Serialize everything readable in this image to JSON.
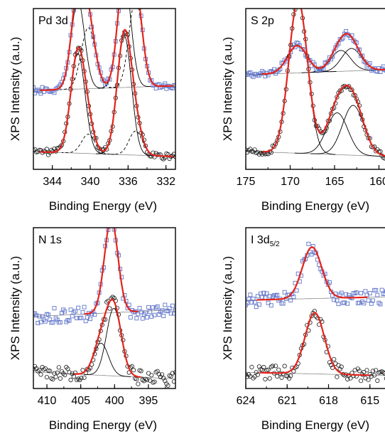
{
  "figure": {
    "y_axis_label": "XPS Intensity (a.u.)",
    "x_axis_label": "Binding Energy (eV)"
  },
  "colors": {
    "fit": "#e3241c",
    "top_markers": "#5f74c8",
    "bottom_markers": "#1a1a1a",
    "component": "#000000",
    "background_line": "#8a8a8a"
  },
  "chart_data": [
    {
      "type": "scatter",
      "panel": "Pd 3d",
      "title": "Pd 3d",
      "xlabel": "Binding Energy (eV)",
      "ylabel": "XPS Intensity (a.u.)",
      "xlim": [
        346,
        331
      ],
      "x_reversed": true,
      "xticks": [
        344,
        340,
        336,
        332
      ],
      "grid": false,
      "series": [
        {
          "curve": "top",
          "marker": "square",
          "peaks": [
            {
              "center": 341.3,
              "height": 0.55,
              "width": 0.7,
              "line": "solid"
            },
            {
              "center": 340.2,
              "height": 0.38,
              "width": 0.75,
              "line": "dash"
            },
            {
              "center": 336.4,
              "height": 0.68,
              "width": 0.7,
              "line": "solid"
            },
            {
              "center": 335.2,
              "height": 0.55,
              "width": 0.7,
              "line": "dash"
            }
          ]
        },
        {
          "curve": "bottom",
          "marker": "circle",
          "peaks": [
            {
              "center": 341.3,
              "height": 0.62,
              "width": 0.75,
              "line": "solid"
            },
            {
              "center": 340.2,
              "height": 0.12,
              "width": 0.7,
              "line": "dash"
            },
            {
              "center": 336.4,
              "height": 0.74,
              "width": 0.75,
              "line": "solid"
            },
            {
              "center": 335.2,
              "height": 0.15,
              "width": 0.7,
              "line": "dash"
            }
          ]
        }
      ]
    },
    {
      "type": "scatter",
      "panel": "S 2p",
      "title": "S 2p",
      "xlabel": "Binding Energy (eV)",
      "ylabel": "XPS Intensity (a.u.)",
      "xlim": [
        175,
        159
      ],
      "x_reversed": true,
      "xticks": [
        175,
        170,
        165,
        160
      ],
      "grid": false,
      "series": [
        {
          "curve": "top",
          "marker": "square",
          "peaks": [
            {
              "center": 169.2,
              "height": 0.17,
              "width": 1.1,
              "line": "solid"
            },
            {
              "center": 164.3,
              "height": 0.13,
              "width": 1.1,
              "line": "solid"
            },
            {
              "center": 163.1,
              "height": 0.14,
              "width": 1.1,
              "line": "solid"
            }
          ]
        },
        {
          "curve": "bottom",
          "marker": "circle",
          "peaks": [
            {
              "center": 169.1,
              "height": 0.95,
              "width": 1.05,
              "line": "solid"
            },
            {
              "center": 164.7,
              "height": 0.26,
              "width": 1.2,
              "line": "solid"
            },
            {
              "center": 162.9,
              "height": 0.31,
              "width": 1.2,
              "line": "solid"
            }
          ]
        }
      ]
    },
    {
      "type": "scatter",
      "panel": "N 1s",
      "title": "N 1s",
      "xlabel": "Binding Energy (eV)",
      "ylabel": "XPS Intensity (a.u.)",
      "xlim": [
        412,
        391
      ],
      "x_reversed": true,
      "xticks": [
        410,
        405,
        400,
        395
      ],
      "grid": false,
      "series": [
        {
          "curve": "top",
          "marker": "square",
          "peaks": [
            {
              "center": 400.5,
              "height": 0.58,
              "width": 1.0,
              "line": "solid"
            }
          ]
        },
        {
          "curve": "bottom",
          "marker": "circle",
          "peaks": [
            {
              "center": 402.0,
              "height": 0.2,
              "width": 1.1,
              "line": "solid"
            },
            {
              "center": 400.1,
              "height": 0.42,
              "width": 1.1,
              "line": "solid"
            }
          ]
        }
      ]
    },
    {
      "type": "scatter",
      "panel": "I 3d5/2",
      "title": "I 3d",
      "title_subscript": "5/2",
      "xlabel": "Binding Energy (eV)",
      "ylabel": "XPS Intensity (a.u.)",
      "xlim": [
        624,
        613.7
      ],
      "x_reversed": true,
      "xticks": [
        624,
        621,
        618,
        615
      ],
      "grid": false,
      "series": [
        {
          "curve": "top",
          "marker": "square",
          "peaks": [
            {
              "center": 619.2,
              "height": 0.32,
              "width": 0.7,
              "line": "solid"
            }
          ]
        },
        {
          "curve": "bottom",
          "marker": "circle",
          "peaks": [
            {
              "center": 619.0,
              "height": 0.38,
              "width": 0.7,
              "line": "solid"
            }
          ]
        }
      ]
    }
  ]
}
